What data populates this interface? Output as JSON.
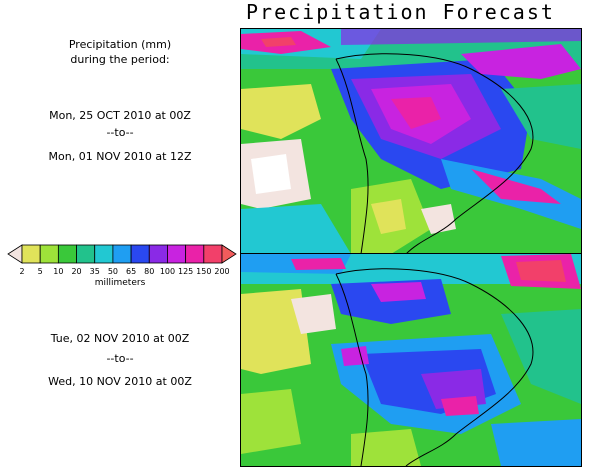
{
  "title": "Precipitation Forecast",
  "description": {
    "line1": "Precipitation (mm)",
    "line2": "during the period:"
  },
  "period1": {
    "start": "Mon, 25 OCT 2010 at 00Z",
    "sep": "--to--",
    "end": "Mon, 01 NOV 2010 at 12Z"
  },
  "period2": {
    "start": "Tue, 02 NOV 2010 at 00Z",
    "sep": "--to--",
    "end": "Wed, 10 NOV 2010 at 00Z"
  },
  "legend": {
    "units": "millimeters",
    "labels": [
      "2",
      "5",
      "10",
      "20",
      "35",
      "50",
      "65",
      "80",
      "100",
      "125",
      "150",
      "200"
    ],
    "colors": [
      "#f3e4e0",
      "#e0e35a",
      "#9ee23a",
      "#3ac83a",
      "#22c28c",
      "#22c8d2",
      "#1f9ef2",
      "#2a48f0",
      "#8a2ae6",
      "#c823e0",
      "#ea22a8",
      "#f2406a",
      "#f25c5c"
    ]
  }
}
